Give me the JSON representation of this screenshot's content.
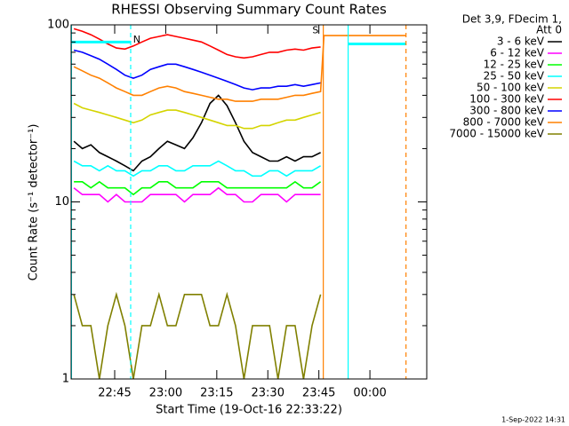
{
  "chart_data": {
    "type": "line",
    "title": "RHESSI Observing Summary Count Rates",
    "x_label": "Start Time (19-Oct-16 22:33:22)",
    "y_label": "Count Rate (s⁻¹ detector⁻¹)",
    "legend_header": [
      "Det 3,9, FDecim 1,",
      "Att 0"
    ],
    "footer": "1-Sep-2022 14:31",
    "log_y": true,
    "xlim": [
      32.2,
      136.7
    ],
    "ylim": [
      1,
      100
    ],
    "xticks": [
      {
        "value": 45,
        "label": "22:45"
      },
      {
        "value": 60,
        "label": "23:00"
      },
      {
        "value": 75,
        "label": "23:15"
      },
      {
        "value": 90,
        "label": "23:30"
      },
      {
        "value": 105,
        "label": "23:45"
      },
      {
        "value": 120,
        "label": "00:00"
      }
    ],
    "yticks": [
      1,
      10,
      100
    ],
    "yminor_ticks": [
      2,
      3,
      4,
      5,
      6,
      7,
      8,
      9,
      20,
      30,
      40,
      50,
      60,
      70,
      80,
      90
    ],
    "x": [
      33,
      35.5,
      38,
      40.5,
      43,
      45.5,
      48,
      50.5,
      53,
      55.5,
      58,
      60.5,
      63,
      65.5,
      68,
      70.5,
      73,
      75.5,
      78,
      80.5,
      83,
      85.5,
      88,
      90.5,
      93,
      95.5,
      98,
      100.5,
      103,
      105.5,
      106.5,
      130.5
    ],
    "series": [
      {
        "name": "3 - 6 keV",
        "color": "#000000",
        "values": [
          22,
          20,
          21,
          19,
          18,
          17,
          16,
          15,
          17,
          18,
          20,
          22,
          21,
          20,
          23,
          28,
          36,
          40,
          35,
          28,
          22,
          19,
          18,
          17,
          17,
          18,
          17,
          18,
          18,
          19,
          null,
          null
        ]
      },
      {
        "name": "6 - 12 keV",
        "color": "#ff00ff",
        "values": [
          12,
          11,
          11,
          11,
          10,
          11,
          10,
          10,
          10,
          11,
          11,
          11,
          11,
          10,
          11,
          11,
          11,
          12,
          11,
          11,
          10,
          10,
          11,
          11,
          11,
          10,
          11,
          11,
          11,
          11,
          null,
          null
        ]
      },
      {
        "name": "12 - 25 keV",
        "color": "#00ff00",
        "values": [
          13,
          13,
          12,
          13,
          12,
          12,
          12,
          11,
          12,
          12,
          13,
          13,
          12,
          12,
          12,
          13,
          13,
          13,
          12,
          12,
          12,
          12,
          12,
          12,
          12,
          12,
          13,
          12,
          12,
          13,
          null,
          null
        ]
      },
      {
        "name": "25 - 50 keV",
        "color": "#00ffff",
        "values": [
          17,
          16,
          16,
          15,
          16,
          15,
          15,
          14,
          15,
          15,
          16,
          16,
          15,
          15,
          16,
          16,
          16,
          17,
          16,
          15,
          15,
          14,
          14,
          15,
          15,
          14,
          15,
          15,
          15,
          16,
          null,
          null
        ]
      },
      {
        "name": "50 - 100 keV",
        "color": "#d4d400",
        "values": [
          36,
          34,
          33,
          32,
          31,
          30,
          29,
          28,
          29,
          31,
          32,
          33,
          33,
          32,
          31,
          30,
          29,
          28,
          27,
          27,
          26,
          26,
          27,
          27,
          28,
          29,
          29,
          30,
          31,
          32,
          null,
          null
        ]
      },
      {
        "name": "100 - 300 keV",
        "color": "#ff0000",
        "values": [
          95,
          92,
          88,
          83,
          78,
          74,
          73,
          76,
          80,
          84,
          86,
          88,
          86,
          84,
          82,
          80,
          76,
          72,
          68,
          66,
          65,
          66,
          68,
          70,
          70,
          72,
          73,
          72,
          74,
          75,
          null,
          null
        ]
      },
      {
        "name": "300 - 800 keV",
        "color": "#0000ff",
        "values": [
          72,
          70,
          67,
          64,
          60,
          56,
          52,
          50,
          52,
          56,
          58,
          60,
          60,
          58,
          56,
          54,
          52,
          50,
          48,
          46,
          44,
          43,
          44,
          44,
          45,
          45,
          46,
          45,
          46,
          47,
          null,
          null
        ]
      },
      {
        "name": "800 - 7000 keV",
        "color": "#ff8000",
        "values": [
          58,
          55,
          52,
          50,
          47,
          44,
          42,
          40,
          40,
          42,
          44,
          45,
          44,
          42,
          41,
          40,
          39,
          38,
          38,
          37,
          37,
          37,
          38,
          38,
          38,
          39,
          40,
          40,
          41,
          42,
          87,
          87
        ]
      },
      {
        "name": "7000 - 15000 keV",
        "color": "#808000",
        "values": [
          3,
          2,
          2,
          1,
          2,
          3,
          2,
          1,
          2,
          2,
          3,
          2,
          2,
          3,
          3,
          3,
          2,
          2,
          3,
          2,
          1,
          2,
          2,
          2,
          1,
          2,
          2,
          1,
          2,
          3,
          null,
          null
        ]
      }
    ],
    "event_lines": [
      {
        "x": 32.3,
        "color": "#00ffff",
        "dashed": false
      },
      {
        "x": 49.7,
        "color": "#00ffff",
        "dashed": true
      },
      {
        "x": 106.3,
        "color": "#ff8000",
        "dashed": false
      },
      {
        "x": 113.6,
        "color": "#00ffff",
        "dashed": false
      },
      {
        "x": 130.6,
        "color": "#ff8000",
        "dashed": true
      }
    ],
    "flag_segments": [
      {
        "x": [
          32.3,
          49.7
        ],
        "y": 80,
        "color": "#00ffff"
      },
      {
        "x": [
          113.6,
          130.6
        ],
        "y": 78,
        "color": "#00ffff"
      }
    ],
    "annotations": [
      {
        "text": "N",
        "x": 51.5,
        "y": 82,
        "color": "#00ffff"
      },
      {
        "text": "S",
        "x": 104,
        "y": 93,
        "color": "#ff8000"
      }
    ]
  }
}
